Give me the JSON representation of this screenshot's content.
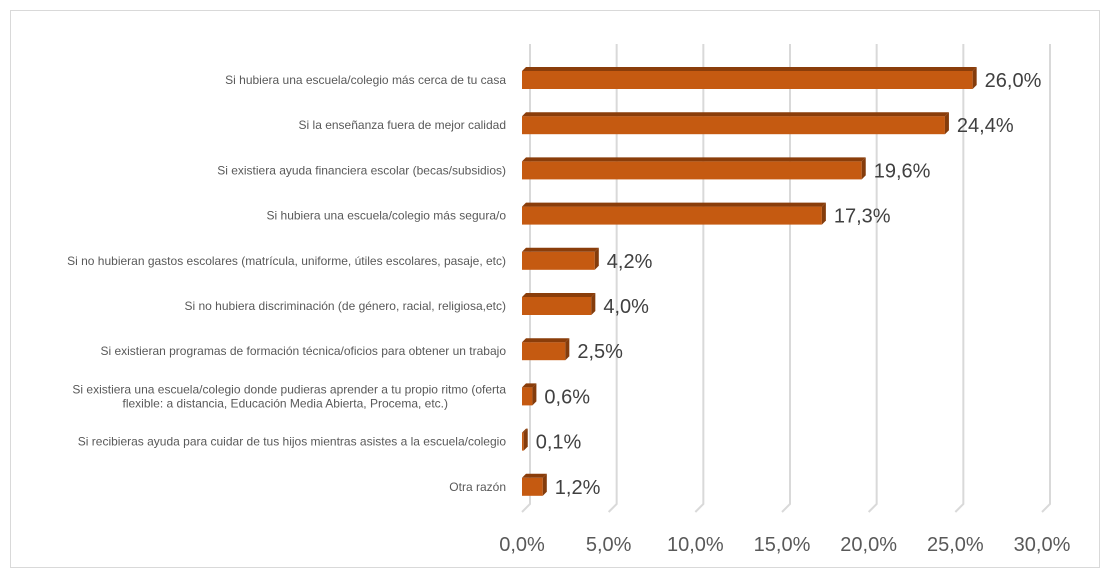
{
  "chart_data": {
    "type": "bar",
    "orientation": "horizontal",
    "title": "",
    "xlabel": "",
    "ylabel": "",
    "xlim": [
      0,
      30
    ],
    "grid": true,
    "legend": "none",
    "bar_color": "#C55A11",
    "bar_top_color": "#8A3D0A",
    "bar_side_color": "#843C0C",
    "categories": [
      [
        "Si hubiera una escuela/colegio más cerca de tu casa"
      ],
      [
        "Si la enseñanza fuera de mejor calidad"
      ],
      [
        "Si existiera ayuda financiera escolar (becas/subsidios)"
      ],
      [
        "Si hubiera una escuela/colegio más segura/o"
      ],
      [
        "Si no hubieran gastos escolares (matrícula, uniforme, útiles escolares, pasaje, etc)"
      ],
      [
        "Si no hubiera discriminación (de género, racial, religiosa,etc)"
      ],
      [
        "Si existieran programas de formación técnica/oficios para obtener un trabajo"
      ],
      [
        "Si existiera una escuela/colegio donde pudieras aprender a tu propio ritmo (oferta",
        "flexible: a distancia, Educación Media Abierta, Procema, etc.)"
      ],
      [
        "Si recibieras ayuda para cuidar de tus hijos mientras asistes a la escuela/colegio"
      ],
      [
        "Otra razón"
      ]
    ],
    "values": [
      26.0,
      24.4,
      19.6,
      17.3,
      4.2,
      4.0,
      2.5,
      0.6,
      0.1,
      1.2
    ],
    "data_labels": [
      "26,0%",
      "24,4%",
      "19,6%",
      "17,3%",
      "4,2%",
      "4,0%",
      "2,5%",
      "0,6%",
      "0,1%",
      "1,2%"
    ],
    "ticks": [
      0,
      5,
      10,
      15,
      20,
      25,
      30
    ],
    "tick_labels": [
      "0,0%",
      "5,0%",
      "10,0%",
      "15,0%",
      "20,0%",
      "25,0%",
      "30,0%"
    ]
  }
}
